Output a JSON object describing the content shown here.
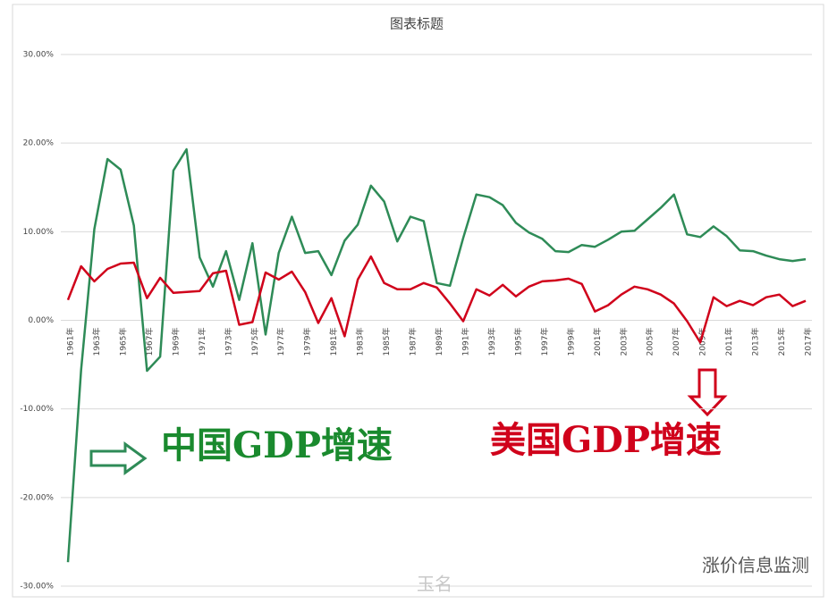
{
  "chart_data": {
    "type": "line",
    "title": "图表标题",
    "categories": [
      "1961年",
      null,
      "1963年",
      null,
      "1965年",
      null,
      "1967年",
      null,
      "1969年",
      null,
      "1971年",
      null,
      "1973年",
      null,
      "1975年",
      null,
      "1977年",
      null,
      "1979年",
      null,
      "1981年",
      null,
      "1983年",
      null,
      "1985年",
      null,
      "1987年",
      null,
      "1989年",
      null,
      "1991年",
      null,
      "1993年",
      null,
      "1995年",
      null,
      "1997年",
      null,
      "1999年",
      null,
      "2001年",
      null,
      "2003年",
      null,
      "2005年",
      null,
      "2007年",
      null,
      "2009年",
      null,
      "2011年",
      null,
      "2013年",
      null,
      "2015年",
      null,
      "2017年"
    ],
    "series": [
      {
        "name": "中国GDP增速",
        "color": "#2e8b57",
        "values": [
          -27.3,
          -5.6,
          10.3,
          18.2,
          17.0,
          10.7,
          -5.7,
          -4.1,
          16.9,
          19.3,
          7.1,
          3.8,
          7.8,
          2.3,
          8.7,
          -1.6,
          7.6,
          11.7,
          7.6,
          7.8,
          5.1,
          9.0,
          10.8,
          15.2,
          13.4,
          8.9,
          11.7,
          11.2,
          4.2,
          3.9,
          9.3,
          14.2,
          13.9,
          13.0,
          11.0,
          9.9,
          9.2,
          7.8,
          7.7,
          8.5,
          8.3,
          9.1,
          10.0,
          10.1,
          11.4,
          12.7,
          14.2,
          9.7,
          9.4,
          10.6,
          9.5,
          7.9,
          7.8,
          7.3,
          6.9,
          6.7,
          6.9
        ]
      },
      {
        "name": "美国GDP增速",
        "color": "#d0021b",
        "values": [
          2.3,
          6.1,
          4.4,
          5.8,
          6.4,
          6.5,
          2.5,
          4.8,
          3.1,
          3.2,
          3.3,
          5.3,
          5.6,
          -0.5,
          -0.2,
          5.4,
          4.6,
          5.5,
          3.2,
          -0.3,
          2.5,
          -1.8,
          4.6,
          7.2,
          4.2,
          3.5,
          3.5,
          4.2,
          3.7,
          1.9,
          -0.1,
          3.5,
          2.8,
          4.0,
          2.7,
          3.8,
          4.4,
          4.5,
          4.7,
          4.1,
          1.0,
          1.7,
          2.9,
          3.8,
          3.5,
          2.9,
          1.9,
          -0.1,
          -2.5,
          2.6,
          1.6,
          2.2,
          1.7,
          2.6,
          2.9,
          1.6,
          2.2
        ]
      }
    ],
    "ylim": [
      -30,
      30
    ],
    "yticks": [
      {
        "value": -30,
        "label": "-30.00%"
      },
      {
        "value": -20,
        "label": "-20.00%"
      },
      {
        "value": -10,
        "label": "-10.00%"
      },
      {
        "value": 0,
        "label": "0.00%"
      },
      {
        "value": 10,
        "label": "10.00%"
      },
      {
        "value": 20,
        "label": "20.00%"
      },
      {
        "value": 30,
        "label": "30.00%"
      }
    ],
    "grid": true,
    "watermarks": [
      "玉名",
      "涨价信息监测"
    ]
  }
}
